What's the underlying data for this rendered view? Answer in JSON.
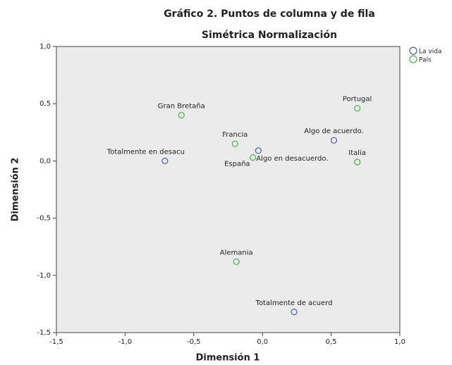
{
  "chart_data": {
    "type": "scatter",
    "title": "Gráfico 2. Puntos de columna y de fila",
    "subtitle": "Simétrica Normalización",
    "x_label": "Dimensión 1",
    "y_label": "Dimensión 2",
    "xlim": [
      -1.5,
      1.0
    ],
    "ylim": [
      -1.5,
      1.0
    ],
    "xticks": [
      {
        "value": -1.5,
        "label": "-1,5"
      },
      {
        "value": -1.0,
        "label": "-1,0"
      },
      {
        "value": -0.5,
        "label": "-0,5"
      },
      {
        "value": 0,
        "label": "0,0"
      },
      {
        "value": 0.5,
        "label": "0,5"
      },
      {
        "value": 1.0,
        "label": "1,0"
      }
    ],
    "yticks": [
      {
        "value": -1.5,
        "label": "-1,5"
      },
      {
        "value": -1.0,
        "label": "-1,0"
      },
      {
        "value": -0.5,
        "label": "-0,5"
      },
      {
        "value": 0,
        "label": "0,0"
      },
      {
        "value": 0.5,
        "label": "0,5"
      },
      {
        "value": 1.0,
        "label": "1,0"
      }
    ],
    "grid": false,
    "legend": "top-right",
    "series": [
      {
        "name": "La vida",
        "color": "#4a5fb5",
        "x": [
          -0.71,
          -0.03,
          0.52,
          0.23
        ],
        "y": [
          0.0,
          0.09,
          0.18,
          -1.32
        ],
        "labels": [
          "Totalmente en desacu",
          "Algo en desacuerdo.",
          "Algo de acuerdo.",
          "Totalmente de acuerd"
        ]
      },
      {
        "name": "País",
        "color": "#3fb34a",
        "x": [
          -0.59,
          -0.2,
          -0.07,
          0.69,
          0.69,
          -0.19
        ],
        "y": [
          0.4,
          0.15,
          0.03,
          0.46,
          -0.01,
          -0.88
        ],
        "labels": [
          "Gran Bretaña",
          "Francia",
          "España",
          "Portugal",
          "Italia",
          "Alemania"
        ]
      }
    ]
  }
}
